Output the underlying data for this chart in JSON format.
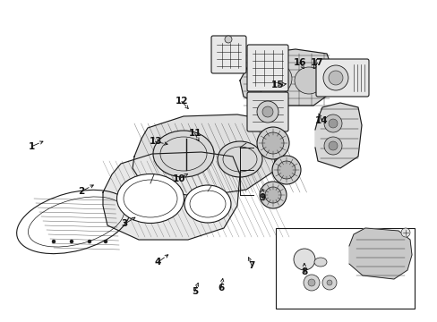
{
  "bg_color": "#ffffff",
  "lc": "#1a1a1a",
  "fig_w": 4.89,
  "fig_h": 3.6,
  "dpi": 100,
  "label_fs": 7.5,
  "labels_arrows": [
    [
      1,
      0.072,
      0.455,
      0.105,
      0.435
    ],
    [
      2,
      0.185,
      0.595,
      0.22,
      0.57
    ],
    [
      3,
      0.285,
      0.695,
      0.315,
      0.67
    ],
    [
      4,
      0.36,
      0.815,
      0.39,
      0.785
    ],
    [
      5,
      0.445,
      0.905,
      0.455,
      0.87
    ],
    [
      6,
      0.505,
      0.895,
      0.51,
      0.855
    ],
    [
      7,
      0.575,
      0.825,
      0.565,
      0.79
    ],
    [
      8,
      0.695,
      0.845,
      0.695,
      0.815
    ],
    [
      9,
      0.6,
      0.615,
      0.6,
      0.585
    ],
    [
      10,
      0.41,
      0.555,
      0.435,
      0.535
    ],
    [
      11,
      0.445,
      0.415,
      0.455,
      0.44
    ],
    [
      12,
      0.415,
      0.315,
      0.435,
      0.345
    ],
    [
      13,
      0.355,
      0.44,
      0.39,
      0.45
    ],
    [
      14,
      0.735,
      0.375,
      0.725,
      0.345
    ],
    [
      15,
      0.635,
      0.265,
      0.655,
      0.26
    ],
    [
      16,
      0.685,
      0.195,
      0.695,
      0.215
    ],
    [
      17,
      0.725,
      0.195,
      0.715,
      0.215
    ]
  ]
}
